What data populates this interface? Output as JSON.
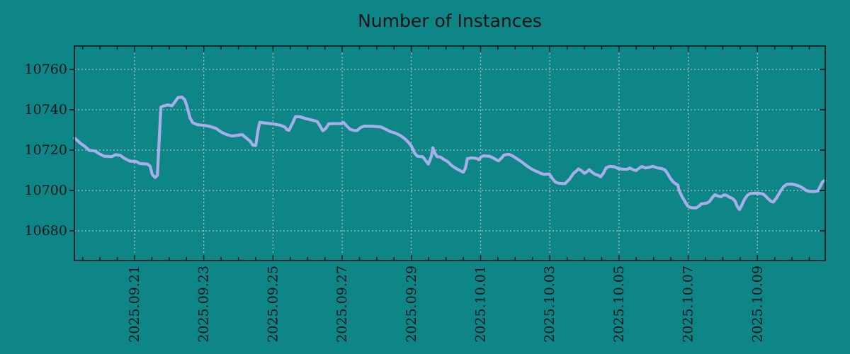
{
  "title": "Number of Instances",
  "colors": {
    "background": "#0e8587",
    "line": "#a8aeea",
    "grid": "#c6cecd",
    "axis": "#0a1414",
    "text": "#0a1414"
  },
  "chart_data": {
    "type": "line",
    "title": "Number of Instances",
    "grid": true,
    "legend": false,
    "x_axis": {
      "unit": "days since 2025-09-21 00:00",
      "range_days": [
        -1.74,
        19.96
      ],
      "tick_days": [
        0,
        2,
        4,
        6,
        8,
        10,
        12,
        14,
        16,
        18
      ],
      "tick_labels": [
        "2025.09.21",
        "2025.09.23",
        "2025.09.25",
        "2025.09.27",
        "2025.09.29",
        "2025.10.01",
        "2025.10.03",
        "2025.10.05",
        "2025.10.07",
        "2025.10.09"
      ],
      "minor_tick_interval_days": 0.5
    },
    "y_axis": {
      "range": [
        10665.3,
        10771.6
      ],
      "ticks": [
        10680,
        10700,
        10720,
        10740,
        10760
      ]
    },
    "series": [
      {
        "name": "instances",
        "points": [
          [
            -1.74,
            10726
          ],
          [
            -1.64,
            10724.6
          ],
          [
            -1.58,
            10723.6
          ],
          [
            -1.43,
            10721.8
          ],
          [
            -1.31,
            10719.9
          ],
          [
            -1.15,
            10719.6
          ],
          [
            -1.02,
            10718.2
          ],
          [
            -0.88,
            10717.0
          ],
          [
            -0.66,
            10716.8
          ],
          [
            -0.55,
            10717.8
          ],
          [
            -0.41,
            10717.4
          ],
          [
            -0.29,
            10715.9
          ],
          [
            -0.14,
            10714.6
          ],
          [
            0.06,
            10714.3
          ],
          [
            0.14,
            10713.4
          ],
          [
            0.37,
            10713.1
          ],
          [
            0.45,
            10712.0
          ],
          [
            0.51,
            10708.0
          ],
          [
            0.59,
            10706.4
          ],
          [
            0.66,
            10707.5
          ],
          [
            0.76,
            10741.3
          ],
          [
            0.82,
            10741.8
          ],
          [
            0.96,
            10742.4
          ],
          [
            1.08,
            10742.0
          ],
          [
            1.17,
            10744.0
          ],
          [
            1.25,
            10746.0
          ],
          [
            1.37,
            10746.3
          ],
          [
            1.45,
            10745.0
          ],
          [
            1.51,
            10742.0
          ],
          [
            1.6,
            10736.0
          ],
          [
            1.68,
            10733.6
          ],
          [
            1.82,
            10732.6
          ],
          [
            2.05,
            10732.2
          ],
          [
            2.19,
            10731.7
          ],
          [
            2.35,
            10730.8
          ],
          [
            2.52,
            10728.8
          ],
          [
            2.68,
            10727.6
          ],
          [
            2.82,
            10727.0
          ],
          [
            2.99,
            10727.4
          ],
          [
            3.11,
            10727.7
          ],
          [
            3.23,
            10726.0
          ],
          [
            3.34,
            10724.5
          ],
          [
            3.42,
            10722.5
          ],
          [
            3.5,
            10722.3
          ],
          [
            3.58,
            10731.0
          ],
          [
            3.62,
            10733.8
          ],
          [
            3.79,
            10733.4
          ],
          [
            4.01,
            10733.0
          ],
          [
            4.22,
            10732.3
          ],
          [
            4.34,
            10731.5
          ],
          [
            4.4,
            10730.2
          ],
          [
            4.46,
            10729.8
          ],
          [
            4.57,
            10733.5
          ],
          [
            4.65,
            10736.6
          ],
          [
            4.79,
            10736.5
          ],
          [
            4.93,
            10735.7
          ],
          [
            5.12,
            10734.9
          ],
          [
            5.28,
            10734.2
          ],
          [
            5.36,
            10732.0
          ],
          [
            5.44,
            10729.6
          ],
          [
            5.53,
            10730.8
          ],
          [
            5.61,
            10733.0
          ],
          [
            5.77,
            10733.2
          ],
          [
            5.96,
            10733.1
          ],
          [
            6.04,
            10733.7
          ],
          [
            6.12,
            10732.2
          ],
          [
            6.22,
            10730.5
          ],
          [
            6.32,
            10729.8
          ],
          [
            6.43,
            10729.7
          ],
          [
            6.53,
            10731.2
          ],
          [
            6.63,
            10731.9
          ],
          [
            6.88,
            10731.8
          ],
          [
            7.12,
            10731.5
          ],
          [
            7.25,
            10730.4
          ],
          [
            7.39,
            10729.2
          ],
          [
            7.53,
            10728.5
          ],
          [
            7.68,
            10727.3
          ],
          [
            7.8,
            10725.8
          ],
          [
            7.92,
            10723.8
          ],
          [
            8.0,
            10722.0
          ],
          [
            8.09,
            10718.6
          ],
          [
            8.17,
            10717.0
          ],
          [
            8.33,
            10716.7
          ],
          [
            8.41,
            10714.9
          ],
          [
            8.49,
            10713.1
          ],
          [
            8.58,
            10717.0
          ],
          [
            8.62,
            10721.2
          ],
          [
            8.68,
            10718.5
          ],
          [
            8.74,
            10716.8
          ],
          [
            8.84,
            10716.6
          ],
          [
            8.95,
            10715.3
          ],
          [
            9.05,
            10714.3
          ],
          [
            9.17,
            10712.3
          ],
          [
            9.27,
            10711.2
          ],
          [
            9.4,
            10709.9
          ],
          [
            9.5,
            10709.1
          ],
          [
            9.56,
            10711.0
          ],
          [
            9.62,
            10715.8
          ],
          [
            9.74,
            10716.2
          ],
          [
            9.89,
            10715.9
          ],
          [
            9.95,
            10715.3
          ],
          [
            10.01,
            10716.6
          ],
          [
            10.09,
            10717.2
          ],
          [
            10.25,
            10717.0
          ],
          [
            10.36,
            10716.2
          ],
          [
            10.46,
            10715.2
          ],
          [
            10.52,
            10714.7
          ],
          [
            10.6,
            10716.0
          ],
          [
            10.68,
            10717.6
          ],
          [
            10.81,
            10718.0
          ],
          [
            10.91,
            10717.3
          ],
          [
            11.01,
            10716.2
          ],
          [
            11.11,
            10715.1
          ],
          [
            11.22,
            10713.8
          ],
          [
            11.32,
            10712.4
          ],
          [
            11.44,
            10711.0
          ],
          [
            11.52,
            10710.2
          ],
          [
            11.63,
            10709.4
          ],
          [
            11.73,
            10708.6
          ],
          [
            11.83,
            10708.0
          ],
          [
            11.99,
            10708.2
          ],
          [
            12.08,
            10705.8
          ],
          [
            12.16,
            10704.2
          ],
          [
            12.26,
            10703.6
          ],
          [
            12.44,
            10703.4
          ],
          [
            12.57,
            10705.6
          ],
          [
            12.69,
            10708.6
          ],
          [
            12.77,
            10709.7
          ],
          [
            12.83,
            10710.7
          ],
          [
            12.92,
            10709.8
          ],
          [
            13.0,
            10708.5
          ],
          [
            13.08,
            10709.4
          ],
          [
            13.14,
            10710.3
          ],
          [
            13.22,
            10709.1
          ],
          [
            13.31,
            10708.0
          ],
          [
            13.41,
            10707.5
          ],
          [
            13.47,
            10706.8
          ],
          [
            13.55,
            10708.6
          ],
          [
            13.63,
            10711.3
          ],
          [
            13.73,
            10712.0
          ],
          [
            13.86,
            10711.8
          ],
          [
            13.96,
            10711.0
          ],
          [
            14.08,
            10710.6
          ],
          [
            14.23,
            10710.5
          ],
          [
            14.31,
            10711.2
          ],
          [
            14.41,
            10710.3
          ],
          [
            14.49,
            10709.9
          ],
          [
            14.57,
            10710.9
          ],
          [
            14.66,
            10711.9
          ],
          [
            14.76,
            10711.2
          ],
          [
            14.86,
            10711.4
          ],
          [
            14.98,
            10712.0
          ],
          [
            15.11,
            10711.2
          ],
          [
            15.23,
            10710.9
          ],
          [
            15.33,
            10710.2
          ],
          [
            15.39,
            10708.8
          ],
          [
            15.47,
            10706.4
          ],
          [
            15.56,
            10704.3
          ],
          [
            15.64,
            10703.3
          ],
          [
            15.7,
            10702.8
          ],
          [
            15.74,
            10699.8
          ],
          [
            15.82,
            10697.0
          ],
          [
            15.91,
            10694.4
          ],
          [
            15.99,
            10692.2
          ],
          [
            16.07,
            10691.5
          ],
          [
            16.23,
            10691.4
          ],
          [
            16.31,
            10692.2
          ],
          [
            16.38,
            10693.4
          ],
          [
            16.54,
            10693.8
          ],
          [
            16.62,
            10694.6
          ],
          [
            16.7,
            10696.6
          ],
          [
            16.77,
            10697.9
          ],
          [
            16.87,
            10697.2
          ],
          [
            16.95,
            10696.9
          ],
          [
            17.03,
            10697.8
          ],
          [
            17.11,
            10697.6
          ],
          [
            17.19,
            10696.7
          ],
          [
            17.28,
            10696.1
          ],
          [
            17.36,
            10694.6
          ],
          [
            17.42,
            10692.0
          ],
          [
            17.48,
            10690.6
          ],
          [
            17.54,
            10692.4
          ],
          [
            17.62,
            10695.4
          ],
          [
            17.71,
            10697.6
          ],
          [
            17.79,
            10698.5
          ],
          [
            17.93,
            10698.7
          ],
          [
            18.05,
            10698.6
          ],
          [
            18.16,
            10698.3
          ],
          [
            18.24,
            10697.2
          ],
          [
            18.32,
            10695.7
          ],
          [
            18.4,
            10694.6
          ],
          [
            18.46,
            10694.3
          ],
          [
            18.55,
            10696.2
          ],
          [
            18.65,
            10699.2
          ],
          [
            18.75,
            10701.8
          ],
          [
            18.85,
            10703.1
          ],
          [
            18.98,
            10703.2
          ],
          [
            19.1,
            10702.8
          ],
          [
            19.22,
            10702.1
          ],
          [
            19.32,
            10701.2
          ],
          [
            19.4,
            10700.1
          ],
          [
            19.49,
            10699.6
          ],
          [
            19.63,
            10699.5
          ],
          [
            19.75,
            10699.8
          ],
          [
            19.83,
            10702.5
          ],
          [
            19.89,
            10704.5
          ],
          [
            19.95,
            10704.9
          ]
        ]
      }
    ]
  }
}
